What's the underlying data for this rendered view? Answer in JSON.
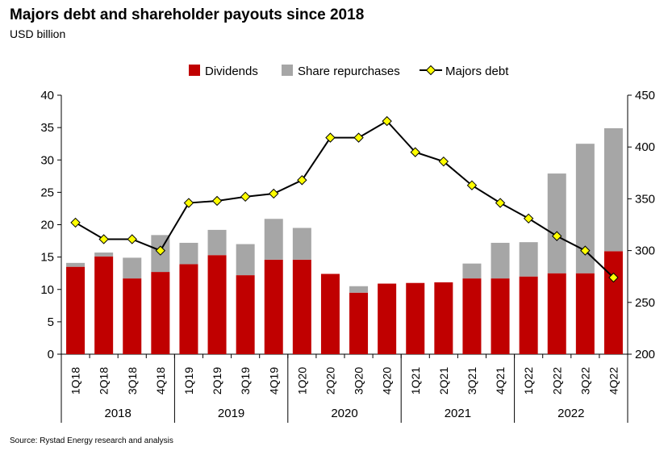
{
  "header": {
    "title": "Majors debt and shareholder payouts since 2018",
    "subtitle": "USD billion"
  },
  "footer": {
    "source": "Source: Rystad Energy research and analysis"
  },
  "colors": {
    "dividends": "#c00000",
    "share_repurchases": "#a6a6a6",
    "debt_line": "#000000",
    "debt_marker": "#ffff00"
  },
  "chart_data": {
    "type": "bar",
    "stacked": true,
    "title": "Majors debt and shareholder payouts since 2018",
    "ylabel": "USD billion",
    "categories": [
      "1Q18",
      "2Q18",
      "3Q18",
      "4Q18",
      "1Q19",
      "2Q19",
      "3Q19",
      "4Q19",
      "1Q20",
      "2Q20",
      "3Q20",
      "4Q20",
      "1Q21",
      "2Q21",
      "3Q21",
      "4Q21",
      "1Q22",
      "2Q22",
      "3Q22",
      "4Q22"
    ],
    "year_groups": [
      {
        "label": "2018",
        "count": 4
      },
      {
        "label": "2019",
        "count": 4
      },
      {
        "label": "2020",
        "count": 4
      },
      {
        "label": "2021",
        "count": 4
      },
      {
        "label": "2022",
        "count": 4
      }
    ],
    "series": [
      {
        "name": "Dividends",
        "kind": "bar",
        "axis": "left",
        "values": [
          13.5,
          15.1,
          11.7,
          12.7,
          13.9,
          15.3,
          12.2,
          14.6,
          14.6,
          12.4,
          9.5,
          10.9,
          11.0,
          11.1,
          11.7,
          11.7,
          12.0,
          12.5,
          12.5,
          15.9
        ]
      },
      {
        "name": "Share repurchases",
        "kind": "bar",
        "axis": "left",
        "values": [
          0.6,
          0.6,
          3.2,
          5.7,
          3.3,
          3.9,
          4.8,
          6.3,
          4.9,
          0.0,
          1.0,
          0.0,
          0.0,
          0.0,
          2.3,
          5.5,
          5.3,
          15.4,
          20.0,
          19.0
        ]
      },
      {
        "name": "Majors debt",
        "kind": "line",
        "axis": "right",
        "values": [
          327,
          311,
          311,
          300,
          346,
          348,
          352,
          355,
          368,
          409,
          409,
          425,
          395,
          386,
          363,
          346,
          331,
          314,
          300,
          274
        ]
      }
    ],
    "left_axis": {
      "min": 0,
      "max": 40,
      "step": 5,
      "ticks": [
        "0",
        "5",
        "10",
        "15",
        "20",
        "25",
        "30",
        "35",
        "40"
      ]
    },
    "right_axis": {
      "min": 200,
      "max": 450,
      "step": 50,
      "ticks": [
        "200",
        "250",
        "300",
        "350",
        "400",
        "450"
      ]
    },
    "legend": {
      "position": "top",
      "items": [
        {
          "label": "Dividends",
          "kind": "bar"
        },
        {
          "label": "Share repurchases",
          "kind": "bar"
        },
        {
          "label": "Majors debt",
          "kind": "line"
        }
      ]
    }
  }
}
